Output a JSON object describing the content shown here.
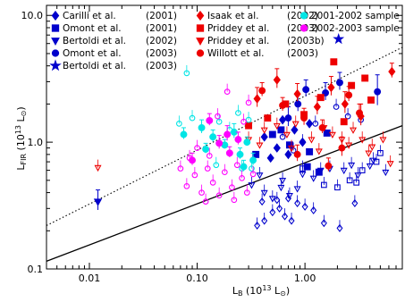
{
  "chart_data": {
    "type": "scatter",
    "title": "",
    "xlabel": {
      "main": "L",
      "sub": "B",
      "rest": " (10",
      "sup": "13",
      "tail": " L",
      "sun": "⊙",
      "close": ")"
    },
    "ylabel": {
      "main": "L",
      "sub": "FIR",
      "rest": " (10",
      "sup": "13",
      "tail": " L",
      "sun": "⊙",
      "close": ")"
    },
    "x_scale": "log",
    "y_scale": "log",
    "xlim": [
      0.004,
      8.0
    ],
    "ylim": [
      0.1,
      12.0
    ],
    "x_ticks": [
      {
        "value": 0.01,
        "label": "0.01"
      },
      {
        "value": 0.1,
        "label": "0.10"
      },
      {
        "value": 1.0,
        "label": "1.00"
      }
    ],
    "y_ticks": [
      {
        "value": 0.1,
        "label": "0.1"
      },
      {
        "value": 1.0,
        "label": "1.0"
      },
      {
        "value": 10.0,
        "label": "10.0"
      }
    ],
    "grid": false,
    "legend_placement": "top",
    "legend": [
      {
        "name": "Carilli et al.",
        "year": "(2001)",
        "marker": "diamond",
        "color": "#0000cc"
      },
      {
        "name": "Omont et al.",
        "year": "(2001)",
        "marker": "square",
        "color": "#0000cc"
      },
      {
        "name": "Bertoldi et al.",
        "year": "(2002)",
        "marker": "triangle-down",
        "color": "#0000cc"
      },
      {
        "name": "Omont et al.",
        "year": "(2003)",
        "marker": "circle",
        "color": "#0000cc"
      },
      {
        "name": "Bertoldi et al.",
        "year": "(2003)",
        "marker": "star",
        "color": "#0000cc"
      },
      {
        "name": "Isaak et al.",
        "year": "(2002)",
        "marker": "diamond",
        "color": "#ee0000"
      },
      {
        "name": "Priddey et al.",
        "year": "(2003)",
        "marker": "square",
        "color": "#ee0000"
      },
      {
        "name": "Priddey et al.",
        "year": "(2003b)",
        "marker": "triangle-down",
        "color": "#ee0000"
      },
      {
        "name": "Willott et al.",
        "year": "(2003)",
        "marker": "circle",
        "color": "#ee0000"
      },
      {
        "name": "2001-2002 sample",
        "year": "",
        "marker": "circle",
        "color": "#00e5e5"
      },
      {
        "name": "2002-2003 sample",
        "year": "",
        "marker": "circle",
        "color": "#ff00ff"
      }
    ],
    "lines": [
      {
        "style": "solid",
        "x": [
          0.004,
          8.0
        ],
        "y": [
          0.115,
          1.35
        ]
      },
      {
        "style": "dotted",
        "x": [
          0.004,
          8.0
        ],
        "y": [
          0.22,
          5.6
        ]
      }
    ],
    "series": [
      {
        "legend_index": 0,
        "filled": true,
        "points": [
          [
            0.42,
            1.1
          ],
          [
            0.55,
            0.9
          ],
          [
            0.62,
            1.5
          ],
          [
            0.7,
            0.8
          ],
          [
            0.8,
            1.25
          ],
          [
            0.95,
            1.0
          ],
          [
            1.1,
            1.4
          ],
          [
            0.48,
            0.75
          ]
        ]
      },
      {
        "legend_index": 0,
        "filled": false,
        "points": [
          [
            0.36,
            0.22
          ],
          [
            0.42,
            0.24
          ],
          [
            0.5,
            0.28
          ],
          [
            0.58,
            0.3
          ],
          [
            0.65,
            0.26
          ],
          [
            0.75,
            0.24
          ],
          [
            0.85,
            0.33
          ],
          [
            0.4,
            0.34
          ],
          [
            0.55,
            0.35
          ],
          [
            0.7,
            0.36
          ],
          [
            1.2,
            0.29
          ],
          [
            1.5,
            0.23
          ],
          [
            2.1,
            0.21
          ],
          [
            2.9,
            0.33
          ],
          [
            1.0,
            0.31
          ]
        ]
      },
      {
        "legend_index": 1,
        "filled": true,
        "points": [
          [
            0.35,
            0.8
          ],
          [
            0.5,
            1.15
          ],
          [
            0.72,
            0.95
          ],
          [
            1.05,
            0.64
          ],
          [
            1.35,
            0.58
          ],
          [
            1.1,
            0.84
          ],
          [
            0.6,
            1.25
          ],
          [
            1.6,
            1.18
          ]
        ]
      },
      {
        "legend_index": 1,
        "filled": false,
        "points": [
          [
            2.6,
            0.5
          ],
          [
            3.0,
            0.48
          ],
          [
            3.4,
            0.6
          ],
          [
            4.6,
            0.7
          ],
          [
            5.0,
            0.82
          ],
          [
            0.95,
            0.62
          ],
          [
            1.5,
            0.46
          ],
          [
            2.0,
            0.44
          ]
        ]
      },
      {
        "legend_index": 2,
        "filled": true,
        "points": [
          [
            0.012,
            0.34
          ]
        ],
        "error_up": [
          0.08
        ]
      },
      {
        "legend_index": 2,
        "filled": false,
        "points": [
          [
            0.32,
            0.46
          ],
          [
            0.42,
            0.4
          ],
          [
            0.5,
            0.36
          ],
          [
            0.6,
            0.44
          ],
          [
            0.72,
            0.38
          ],
          [
            0.85,
            0.43
          ],
          [
            1.2,
            0.52
          ],
          [
            1.4,
            0.6
          ],
          [
            2.3,
            0.6
          ],
          [
            3.1,
            0.55
          ],
          [
            4.3,
            0.72
          ],
          [
            5.6,
            0.58
          ],
          [
            0.38,
            0.55
          ],
          [
            0.62,
            0.5
          ],
          [
            0.95,
            0.56
          ],
          [
            1.7,
            0.62
          ],
          [
            2.7,
            0.66
          ],
          [
            4.0,
            0.65
          ]
        ]
      },
      {
        "legend_index": 3,
        "filled": true,
        "points": [
          [
            0.7,
            1.55
          ],
          [
            1.02,
            2.6
          ],
          [
            1.55,
            2.45
          ],
          [
            2.1,
            2.95
          ],
          [
            4.7,
            2.5
          ],
          [
            0.86,
            2.0
          ]
        ],
        "error_up": [
          0.35,
          0.5,
          0.5,
          0.6,
          0.9,
          0.4
        ]
      },
      {
        "legend_index": 3,
        "filled": false,
        "points": [
          [
            0.62,
            1.1
          ],
          [
            0.95,
            1.0
          ],
          [
            1.25,
            1.4
          ],
          [
            0.78,
            0.86
          ],
          [
            1.95,
            1.9
          ],
          [
            2.5,
            1.6
          ],
          [
            3.3,
            1.5
          ]
        ]
      },
      {
        "legend_index": 4,
        "filled": true,
        "points": [
          [
            2.05,
            6.5
          ]
        ]
      },
      {
        "legend_index": 5,
        "filled": true,
        "points": [
          [
            0.36,
            2.2
          ],
          [
            0.55,
            3.1
          ],
          [
            0.85,
            2.4
          ],
          [
            1.3,
            1.9
          ],
          [
            1.75,
            2.7
          ],
          [
            2.35,
            2.0
          ],
          [
            3.3,
            1.6
          ],
          [
            6.4,
            3.6
          ]
        ],
        "error_up": [
          0.5,
          0.7,
          0.5,
          0.4,
          0.6,
          0.5,
          0.4,
          0.6
        ]
      },
      {
        "legend_index": 6,
        "filled": true,
        "points": [
          [
            0.66,
            2.0
          ],
          [
            0.98,
            1.65
          ],
          [
            1.4,
            2.25
          ],
          [
            1.85,
            4.3
          ],
          [
            2.7,
            2.8
          ],
          [
            3.6,
            3.2
          ],
          [
            4.1,
            2.15
          ],
          [
            2.3,
            1.45
          ],
          [
            0.3,
            1.35
          ],
          [
            0.45,
            1.55
          ]
        ]
      },
      {
        "legend_index": 7,
        "filled": false,
        "points": [
          [
            0.012,
            0.63
          ],
          [
            0.3,
            1.05
          ],
          [
            0.42,
            1.25
          ],
          [
            0.55,
            1.35
          ],
          [
            0.68,
            1.15
          ],
          [
            0.82,
            1.4
          ],
          [
            1.15,
            1.05
          ],
          [
            1.5,
            1.3
          ],
          [
            1.8,
            1.15
          ],
          [
            2.2,
            1.05
          ],
          [
            2.8,
            1.25
          ],
          [
            3.4,
            1.05
          ],
          [
            4.2,
            0.92
          ],
          [
            5.3,
            1.05
          ],
          [
            6.2,
            0.68
          ],
          [
            0.38,
            0.95
          ],
          [
            0.75,
            0.9
          ],
          [
            1.35,
            0.85
          ],
          [
            2.55,
            0.95
          ],
          [
            3.9,
            0.82
          ]
        ]
      },
      {
        "legend_index": 8,
        "filled": true,
        "points": [
          [
            0.4,
            2.55
          ],
          [
            0.62,
            1.95
          ],
          [
            0.98,
            1.55
          ],
          [
            1.45,
            1.3
          ],
          [
            2.2,
            0.9
          ],
          [
            2.55,
            2.35
          ],
          [
            3.2,
            1.7
          ],
          [
            1.65,
            0.65
          ],
          [
            0.85,
            0.8
          ]
        ],
        "error_up": [
          0.4,
          0.3,
          0.3,
          0.2,
          0.2,
          0.4,
          0.3,
          0.1,
          0.15
        ]
      },
      {
        "legend_index": 9,
        "filled": true,
        "points": [
          [
            0.075,
            1.15
          ],
          [
            0.11,
            1.3
          ],
          [
            0.14,
            1.1
          ],
          [
            0.18,
            0.95
          ],
          [
            0.22,
            1.2
          ],
          [
            0.25,
            0.8
          ],
          [
            0.29,
            1.0
          ],
          [
            0.33,
            0.72
          ],
          [
            0.12,
            0.88
          ],
          [
            0.27,
            0.64
          ]
        ],
        "error_up": [
          0.15,
          0.2,
          0.15,
          0.1,
          0.2,
          0.1,
          0.1,
          0.1,
          0.1,
          0.08
        ]
      },
      {
        "legend_index": 9,
        "filled": false,
        "points": [
          [
            0.068,
            1.4
          ],
          [
            0.09,
            1.55
          ],
          [
            0.16,
            1.45
          ],
          [
            0.2,
            1.25
          ],
          [
            0.24,
            1.7
          ],
          [
            0.3,
            1.5
          ],
          [
            0.08,
            3.5
          ],
          [
            0.26,
            0.62
          ],
          [
            0.32,
            0.62
          ],
          [
            0.15,
            0.66
          ]
        ]
      },
      {
        "legend_index": 10,
        "filled": true,
        "points": [
          [
            0.13,
            1.48
          ],
          [
            0.19,
            1.15
          ],
          [
            0.24,
            1.05
          ],
          [
            0.2,
            0.82
          ],
          [
            0.16,
            0.98
          ],
          [
            0.09,
            0.72
          ]
        ],
        "error_up": [
          0.2,
          0.2,
          0.15,
          0.1,
          0.15,
          0.1
        ]
      },
      {
        "legend_index": 10,
        "filled": false,
        "points": [
          [
            0.08,
            0.45
          ],
          [
            0.095,
            0.55
          ],
          [
            0.11,
            0.4
          ],
          [
            0.125,
            0.62
          ],
          [
            0.14,
            0.48
          ],
          [
            0.16,
            0.38
          ],
          [
            0.18,
            0.58
          ],
          [
            0.21,
            0.44
          ],
          [
            0.235,
            0.66
          ],
          [
            0.26,
            0.52
          ],
          [
            0.29,
            0.4
          ],
          [
            0.1,
            0.9
          ],
          [
            0.13,
            0.78
          ],
          [
            0.155,
            1.6
          ],
          [
            0.19,
            2.5
          ],
          [
            0.27,
            1.45
          ],
          [
            0.3,
            2.05
          ],
          [
            0.33,
            0.56
          ],
          [
            0.07,
            0.62
          ],
          [
            0.085,
            0.75
          ],
          [
            0.22,
            0.35
          ],
          [
            0.12,
            0.34
          ]
        ]
      }
    ]
  }
}
